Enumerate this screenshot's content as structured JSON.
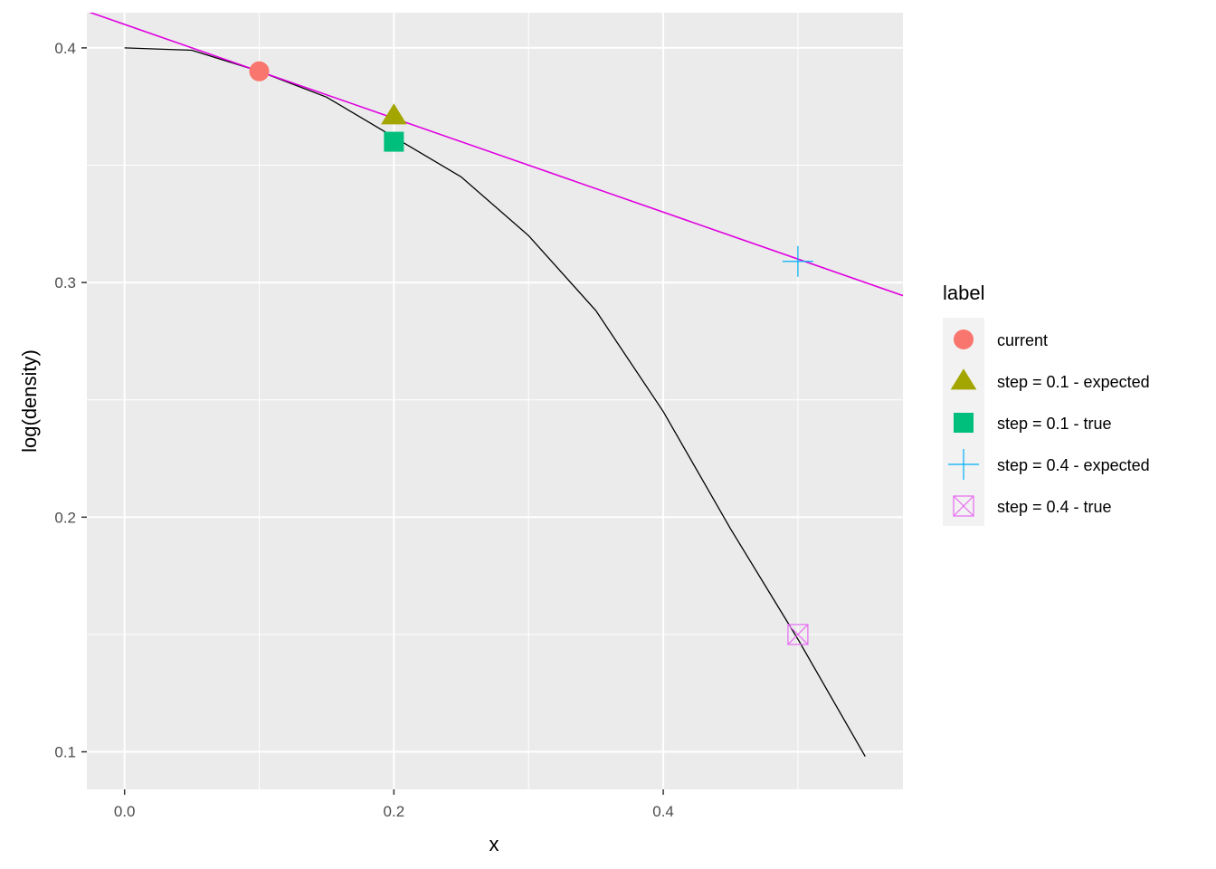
{
  "chart_data": {
    "type": "line",
    "xlabel": "x",
    "ylabel": "log(density)",
    "xlim": [
      -0.028,
      0.578
    ],
    "ylim": [
      0.084,
      0.415
    ],
    "x_ticks": [
      0.0,
      0.2,
      0.4
    ],
    "x_tick_labels": [
      "0.0",
      "0.2",
      "0.4"
    ],
    "y_ticks": [
      0.1,
      0.2,
      0.3,
      0.4
    ],
    "y_tick_labels": [
      "0.1",
      "0.2",
      "0.3",
      "0.4"
    ],
    "grid": true,
    "panel_background": "#ebebeb",
    "curve": {
      "color": "#000000",
      "x": [
        0.0,
        0.05,
        0.1,
        0.15,
        0.2,
        0.25,
        0.3,
        0.35,
        0.4,
        0.45,
        0.5,
        0.55
      ],
      "y": [
        0.4,
        0.399,
        0.39,
        0.379,
        0.362,
        0.345,
        0.32,
        0.288,
        0.245,
        0.195,
        0.148,
        0.098
      ]
    },
    "tangent_line": {
      "color": "#e000e0",
      "intercept": 0.41,
      "slope": -0.2
    },
    "points": [
      {
        "label": "current",
        "x": 0.1,
        "y": 0.39,
        "shape": "circle",
        "color": "#F8766D"
      },
      {
        "label": "step = 0.1 - expected",
        "x": 0.2,
        "y": 0.371,
        "shape": "triangle",
        "color": "#A3A500"
      },
      {
        "label": "step = 0.1 - true",
        "x": 0.2,
        "y": 0.36,
        "shape": "square",
        "color": "#00BF7D"
      },
      {
        "label": "step = 0.4 - expected",
        "x": 0.5,
        "y": 0.309,
        "shape": "plus",
        "color": "#00B0F6"
      },
      {
        "label": "step = 0.4 - true",
        "x": 0.5,
        "y": 0.15,
        "shape": "boxx",
        "color": "#E76BF3"
      }
    ],
    "legend": {
      "title": "label",
      "position": "right",
      "entries": [
        {
          "label": "current",
          "shape": "circle",
          "color": "#F8766D"
        },
        {
          "label": "step = 0.1 - expected",
          "shape": "triangle",
          "color": "#A3A500"
        },
        {
          "label": "step = 0.1 - true",
          "shape": "square",
          "color": "#00BF7D"
        },
        {
          "label": "step = 0.4 - expected",
          "shape": "plus",
          "color": "#00B0F6"
        },
        {
          "label": "step = 0.4 - true",
          "shape": "boxx",
          "color": "#E76BF3"
        }
      ]
    }
  }
}
